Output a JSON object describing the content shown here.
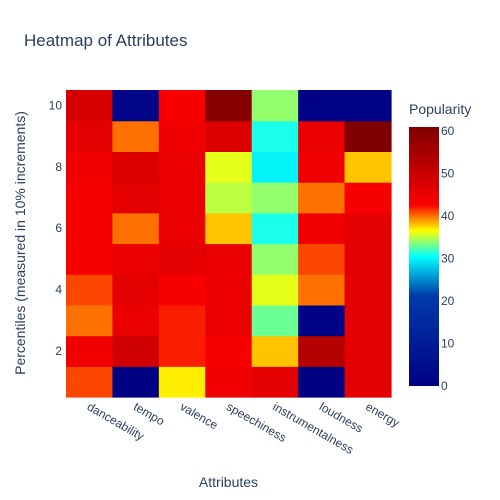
{
  "chart_data": {
    "type": "heatmap",
    "title": "Heatmap of Attributes",
    "xlabel": "Attributes",
    "ylabel": "Percentiles (measured in 10% increments)",
    "colorbar_title": "Popularity",
    "x_categories": [
      "danceability",
      "tempo",
      "valence",
      "speechiness",
      "instrumentalness",
      "loudness",
      "energy"
    ],
    "y_values": [
      1,
      2,
      3,
      4,
      5,
      6,
      7,
      8,
      9,
      10
    ],
    "y_tick_labels": [
      "2",
      "4",
      "6",
      "8",
      "10"
    ],
    "y_ticks": [
      2,
      4,
      6,
      8,
      10
    ],
    "z": [
      [
        41,
        0,
        37,
        44,
        46,
        0,
        46
      ],
      [
        44,
        49,
        42,
        43,
        38,
        53,
        46
      ],
      [
        40,
        45,
        42,
        45,
        33,
        1,
        46
      ],
      [
        41,
        46,
        43,
        45,
        36,
        40,
        46
      ],
      [
        43,
        45,
        46,
        45,
        34,
        41,
        46
      ],
      [
        43,
        40,
        45,
        38,
        31,
        44,
        46
      ],
      [
        43,
        46,
        45,
        35,
        34,
        40,
        43
      ],
      [
        44,
        47,
        45,
        36,
        30,
        44,
        38
      ],
      [
        46,
        40,
        44,
        47,
        31,
        45,
        61
      ],
      [
        48,
        2,
        43,
        60,
        34,
        1,
        1
      ]
    ],
    "colorscale": [
      "#000083",
      "#003caa",
      "#05ffff",
      "#ffff00",
      "#fa0000",
      "#800000"
    ],
    "zlim": [
      0,
      61
    ],
    "colorbar_ticks": [
      0,
      10,
      20,
      30,
      40,
      50,
      60
    ],
    "colorbar_tick_labels": [
      "0",
      "10",
      "20",
      "30",
      "40",
      "50",
      "60"
    ]
  }
}
